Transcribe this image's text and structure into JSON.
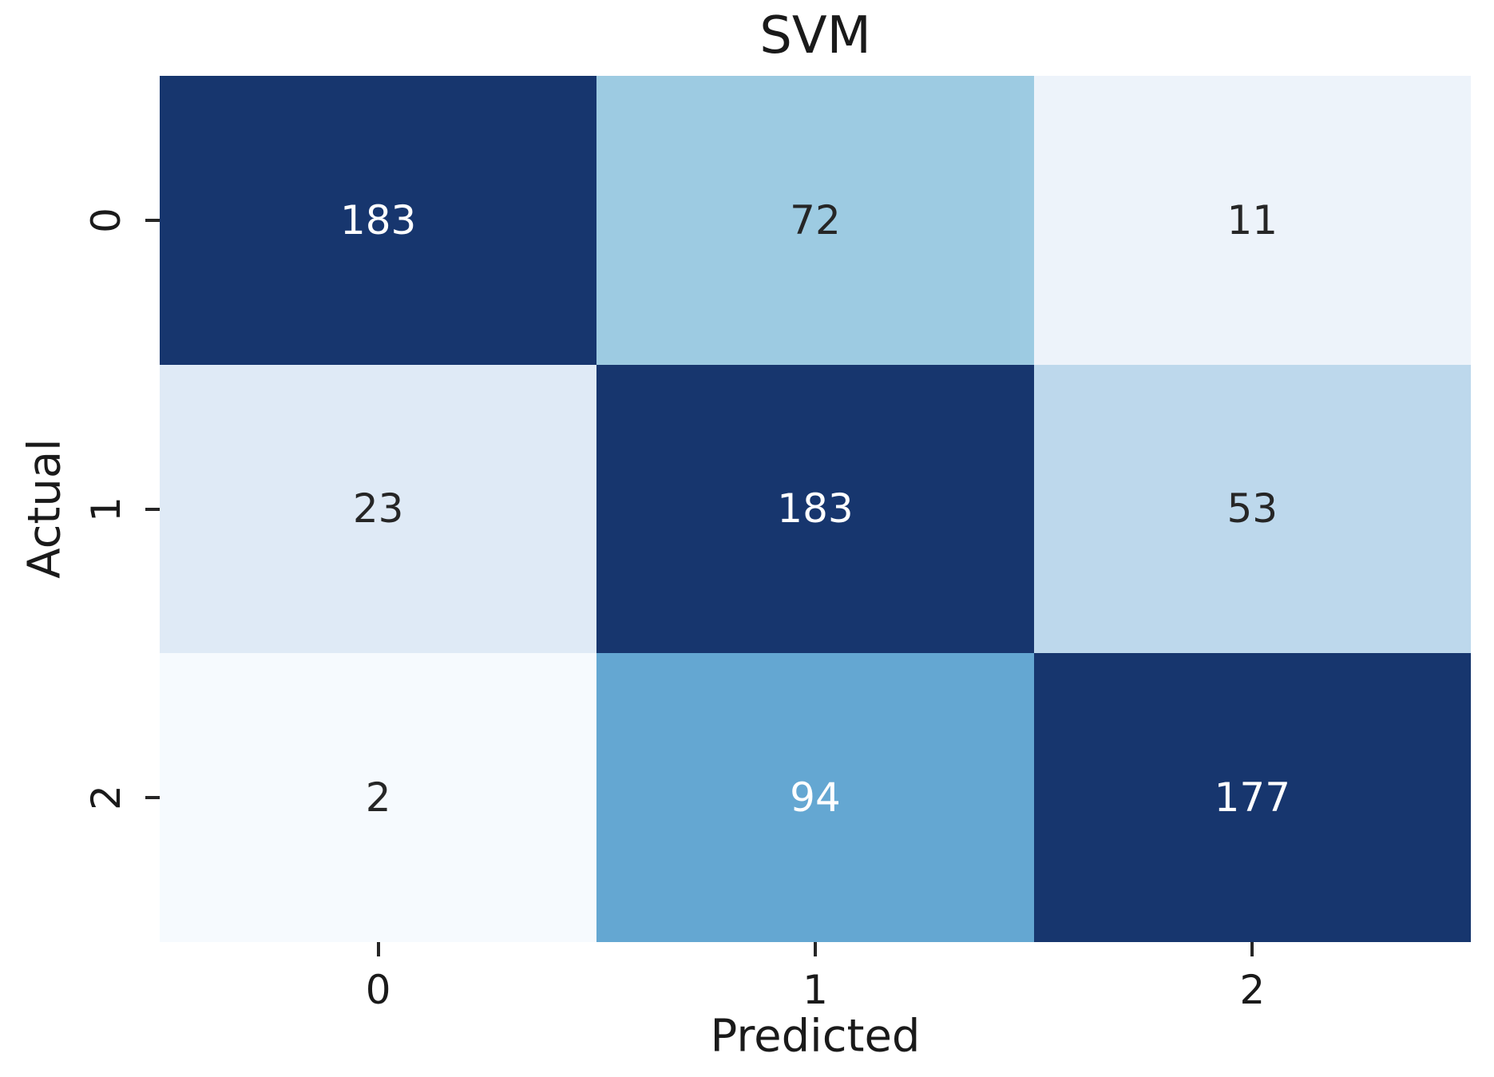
{
  "chart_data": {
    "type": "heatmap",
    "title": "SVM",
    "xlabel": "Predicted",
    "ylabel": "Actual",
    "x_tick_labels": [
      "0",
      "1",
      "2"
    ],
    "y_tick_labels": [
      "0",
      "1",
      "2"
    ],
    "matrix": [
      [
        183,
        72,
        11
      ],
      [
        23,
        183,
        53
      ],
      [
        2,
        94,
        177
      ]
    ],
    "colormap": "Blues",
    "value_range": [
      2,
      183
    ],
    "cell_colors": [
      [
        "#17366e",
        "#9dcbe2",
        "#edf3fa"
      ],
      [
        "#dfeaf6",
        "#17366e",
        "#bdd8ec"
      ],
      [
        "#f6fafe",
        "#64a7d2",
        "#17366e"
      ]
    ],
    "cell_text_colors": [
      [
        "#ffffff",
        "#262626",
        "#262626"
      ],
      [
        "#262626",
        "#ffffff",
        "#262626"
      ],
      [
        "#262626",
        "#ffffff",
        "#ffffff"
      ]
    ],
    "axis_text_color": "#1a1a1a",
    "tick_mark_color": "#262626",
    "legend": "none",
    "grid": false
  }
}
